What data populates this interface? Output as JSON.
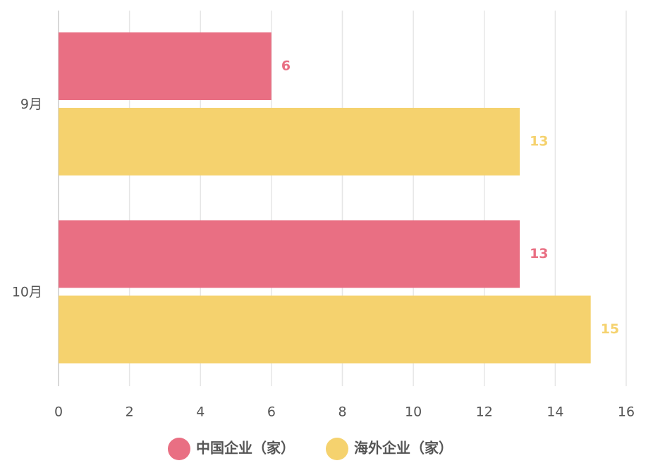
{
  "chart_data": {
    "type": "bar",
    "orientation": "horizontal",
    "categories": [
      "9月",
      "10月"
    ],
    "series": [
      {
        "name": "中国企业（家）",
        "color": "#e96f83",
        "values": [
          6,
          13
        ]
      },
      {
        "name": "海外企业（家）",
        "color": "#f5d26e",
        "values": [
          13,
          15
        ]
      }
    ],
    "xlim": [
      0,
      16
    ],
    "xticks": [
      0,
      2,
      4,
      6,
      8,
      10,
      12,
      14,
      16
    ],
    "grid": true,
    "legend": "bottom"
  }
}
